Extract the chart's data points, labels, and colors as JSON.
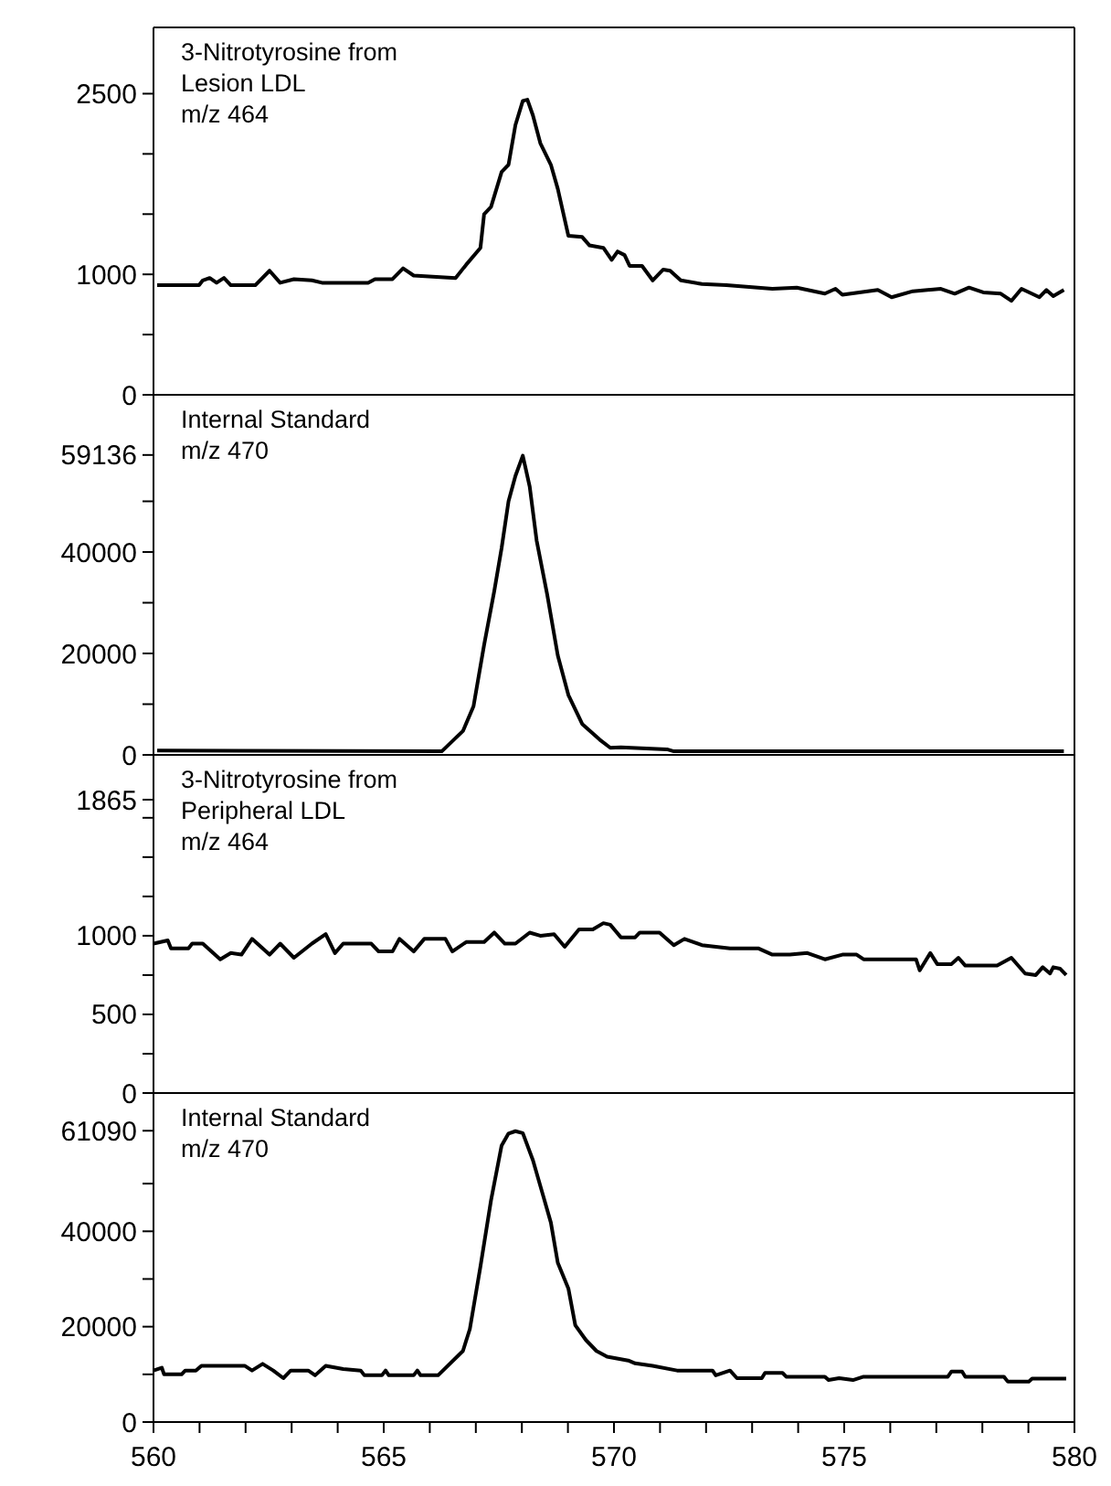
{
  "chart_data": [
    {
      "type": "line",
      "annotations": [
        "3-Nitrotyrosine from\nLesion LDL\nm/z 464"
      ],
      "tick_labels": "y",
      "xlim": [
        560,
        580
      ],
      "ylim": [
        0,
        3050
      ],
      "yticks": [
        0,
        {
          "value": 500,
          "label": null
        },
        1000,
        {
          "value": 1500,
          "label": null
        },
        {
          "value": 2000,
          "label": null
        },
        2500
      ],
      "x": [
        560.08,
        560.99,
        561.07,
        561.22,
        561.37,
        561.53,
        561.68,
        562.21,
        562.52,
        562.75,
        563.05,
        563.44,
        563.66,
        564.66,
        564.81,
        565.19,
        565.42,
        565.65,
        566.56,
        566.79,
        567.1,
        567.18,
        567.33,
        567.56,
        567.71,
        567.86,
        568.02,
        568.12,
        568.24,
        568.4,
        568.63,
        568.78,
        569.01,
        569.31,
        569.47,
        569.77,
        569.95,
        570.08,
        570.23,
        570.34,
        570.61,
        570.84,
        571.07,
        571.22,
        571.45,
        571.91,
        572.44,
        573.44,
        573.97,
        574.58,
        574.81,
        574.96,
        575.73,
        576.03,
        576.49,
        577.1,
        577.4,
        577.71,
        578.02,
        578.4,
        578.63,
        578.85,
        579.24,
        579.39,
        579.54,
        579.77
      ],
      "series": [
        {
          "color": "#000000",
          "values": [
            910,
            910,
            950,
            970,
            930,
            970,
            910,
            910,
            1030,
            930,
            960,
            950,
            930,
            930,
            960,
            960,
            1050,
            990,
            970,
            1080,
            1220,
            1500,
            1560,
            1850,
            1910,
            2240,
            2440,
            2450,
            2320,
            2090,
            1910,
            1710,
            1320,
            1310,
            1240,
            1220,
            1120,
            1190,
            1160,
            1070,
            1070,
            950,
            1040,
            1030,
            950,
            920,
            910,
            880,
            890,
            840,
            880,
            830,
            870,
            810,
            860,
            880,
            840,
            890,
            850,
            840,
            780,
            880,
            810,
            870,
            820,
            870
          ]
        }
      ]
    },
    {
      "type": "line",
      "annotations": [
        "Internal Standard\nm/z 470"
      ],
      "tick_labels": "y",
      "xlim": [
        560,
        580
      ],
      "ylim": [
        0,
        71000
      ],
      "yticks": [
        0,
        {
          "value": 10000,
          "label": null
        },
        20000,
        {
          "value": 30000,
          "label": null
        },
        40000,
        {
          "value": 50000,
          "label": null
        },
        59136
      ],
      "x": [
        560.08,
        566.26,
        566.72,
        566.95,
        567.18,
        567.4,
        567.56,
        567.71,
        567.86,
        568.02,
        568.17,
        568.32,
        568.55,
        568.78,
        569.01,
        569.31,
        569.69,
        569.92,
        570.15,
        571.15,
        571.3,
        579.77
      ],
      "series": [
        {
          "color": "#000000",
          "values": [
            850,
            700,
            4700,
            9600,
            21700,
            32300,
            40800,
            50000,
            55000,
            59000,
            52900,
            42300,
            31600,
            19600,
            11800,
            6100,
            3000,
            1400,
            1500,
            1100,
            700,
            700
          ]
        }
      ]
    },
    {
      "type": "line",
      "annotations": [
        "3-Nitrotyrosine from\nPeripheral LDL\nm/z 464"
      ],
      "tick_labels": "y",
      "xlim": [
        560,
        580
      ],
      "ylim": [
        0,
        2150
      ],
      "yticks": [
        0,
        {
          "value": 250,
          "label": null
        },
        500,
        {
          "value": 750,
          "label": null
        },
        1000,
        {
          "value": 1250,
          "label": null
        },
        {
          "value": 1500,
          "label": null
        },
        {
          "value": 1750,
          "label": null
        },
        1865
      ],
      "x": [
        560,
        560.31,
        560.38,
        560.76,
        560.84,
        561.07,
        561.45,
        561.68,
        561.91,
        562.14,
        562.52,
        562.75,
        563.05,
        563.44,
        563.74,
        563.94,
        564.12,
        564.73,
        564.89,
        565.19,
        565.34,
        565.65,
        565.88,
        566.34,
        566.49,
        566.79,
        567.18,
        567.4,
        567.63,
        567.86,
        568.17,
        568.4,
        568.7,
        568.93,
        569.24,
        569.54,
        569.77,
        569.92,
        570.15,
        570.46,
        570.56,
        570.99,
        571.3,
        571.53,
        571.91,
        572.52,
        573.13,
        573.44,
        573.82,
        574.2,
        574.58,
        574.96,
        575.27,
        575.42,
        576.56,
        576.64,
        576.87,
        577.02,
        577.33,
        577.48,
        577.63,
        578.32,
        578.63,
        578.93,
        579.16,
        579.31,
        579.47,
        579.54,
        579.69,
        579.82
      ],
      "series": [
        {
          "color": "#000000",
          "values": [
            950,
            970,
            920,
            920,
            950,
            950,
            850,
            890,
            880,
            980,
            880,
            950,
            860,
            950,
            1010,
            890,
            950,
            950,
            900,
            900,
            980,
            900,
            980,
            980,
            900,
            960,
            960,
            1020,
            950,
            950,
            1020,
            1000,
            1010,
            930,
            1040,
            1040,
            1080,
            1070,
            990,
            990,
            1020,
            1020,
            940,
            980,
            940,
            920,
            920,
            880,
            880,
            890,
            850,
            880,
            880,
            850,
            850,
            780,
            890,
            820,
            820,
            860,
            810,
            810,
            860,
            760,
            750,
            800,
            760,
            800,
            790,
            750
          ]
        }
      ]
    },
    {
      "type": "line",
      "annotations": [
        "Internal Standard\nm/z 470"
      ],
      "xlim": [
        560,
        580
      ],
      "ylim": [
        0,
        69000
      ],
      "yticks": [
        0,
        {
          "value": 10000,
          "label": null
        },
        20000,
        {
          "value": 30000,
          "label": null
        },
        40000,
        {
          "value": 50000,
          "label": null
        },
        61090
      ],
      "xticks": [
        560,
        {
          "value": 561,
          "label": null
        },
        {
          "value": 562,
          "label": null
        },
        {
          "value": 563,
          "label": null
        },
        {
          "value": 564,
          "label": null
        },
        565,
        {
          "value": 566,
          "label": null
        },
        {
          "value": 567,
          "label": null
        },
        {
          "value": 568,
          "label": null
        },
        {
          "value": 569,
          "label": null
        },
        570,
        {
          "value": 571,
          "label": null
        },
        {
          "value": 572,
          "label": null
        },
        {
          "value": 573,
          "label": null
        },
        {
          "value": 574,
          "label": null
        },
        575,
        {
          "value": 576,
          "label": null
        },
        {
          "value": 577,
          "label": null
        },
        {
          "value": 578,
          "label": null
        },
        {
          "value": 579,
          "label": null
        },
        580
      ],
      "x": [
        560,
        560.18,
        560.23,
        560.61,
        560.69,
        560.92,
        561.04,
        561.98,
        562.14,
        562.37,
        562.6,
        562.82,
        562.98,
        563.36,
        563.51,
        563.74,
        564.12,
        564.5,
        564.58,
        564.96,
        565.04,
        565.11,
        565.65,
        565.73,
        565.8,
        566.18,
        566.72,
        566.87,
        567.1,
        567.33,
        567.56,
        567.71,
        567.86,
        568.02,
        568.24,
        568.47,
        568.63,
        568.78,
        569.01,
        569.16,
        569.39,
        569.62,
        569.85,
        570.31,
        570.46,
        570.84,
        571.37,
        572.14,
        572.21,
        572.52,
        572.67,
        573.21,
        573.28,
        573.66,
        573.74,
        574.58,
        574.66,
        574.89,
        575.19,
        575.42,
        577.25,
        577.33,
        577.56,
        577.63,
        578.47,
        578.55,
        579.01,
        579.08,
        579.82
      ],
      "series": [
        {
          "color": "#000000",
          "values": [
            10800,
            11400,
            10000,
            10000,
            10800,
            10800,
            11800,
            11800,
            10800,
            12200,
            10800,
            9200,
            10800,
            10800,
            9800,
            11800,
            11100,
            10800,
            9800,
            9800,
            10800,
            9800,
            9800,
            10800,
            9800,
            9800,
            14900,
            19500,
            32600,
            46500,
            58000,
            60500,
            61000,
            60600,
            54900,
            47200,
            41800,
            33400,
            28000,
            20300,
            17200,
            14900,
            13700,
            12900,
            12300,
            11800,
            10800,
            10800,
            9800,
            10800,
            9200,
            9200,
            10300,
            10300,
            9500,
            9500,
            8800,
            9200,
            8800,
            9500,
            9500,
            10600,
            10600,
            9500,
            9500,
            8500,
            8500,
            9100,
            9100
          ]
        }
      ]
    }
  ]
}
